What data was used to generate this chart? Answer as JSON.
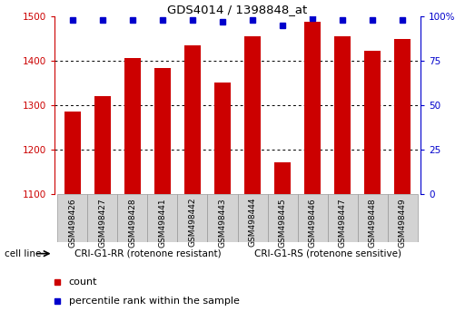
{
  "title": "GDS4014 / 1398848_at",
  "categories": [
    "GSM498426",
    "GSM498427",
    "GSM498428",
    "GSM498441",
    "GSM498442",
    "GSM498443",
    "GSM498444",
    "GSM498445",
    "GSM498446",
    "GSM498447",
    "GSM498448",
    "GSM498449"
  ],
  "bar_values": [
    1285,
    1320,
    1405,
    1383,
    1435,
    1350,
    1455,
    1172,
    1487,
    1455,
    1423,
    1448
  ],
  "percentile_values": [
    98,
    98,
    98,
    98,
    98,
    97,
    98,
    95,
    99,
    98,
    98,
    98
  ],
  "bar_color": "#cc0000",
  "dot_color": "#0000cc",
  "ylim_left": [
    1100,
    1500
  ],
  "ylim_right": [
    0,
    100
  ],
  "yticks_left": [
    1100,
    1200,
    1300,
    1400,
    1500
  ],
  "yticks_right": [
    0,
    25,
    50,
    75,
    100
  ],
  "group1_label": "CRI-G1-RR (rotenone resistant)",
  "group2_label": "CRI-G1-RS (rotenone sensitive)",
  "group1_count": 6,
  "group2_count": 6,
  "cell_line_label": "cell line",
  "legend_bar_label": "count",
  "legend_dot_label": "percentile rank within the sample",
  "background_color": "#ffffff",
  "plot_bg_color": "#ffffff",
  "group_bg_color": "#90ee90",
  "xticklabel_bg": "#d3d3d3",
  "right_axis_color": "#0000cc",
  "left_axis_color": "#cc0000"
}
